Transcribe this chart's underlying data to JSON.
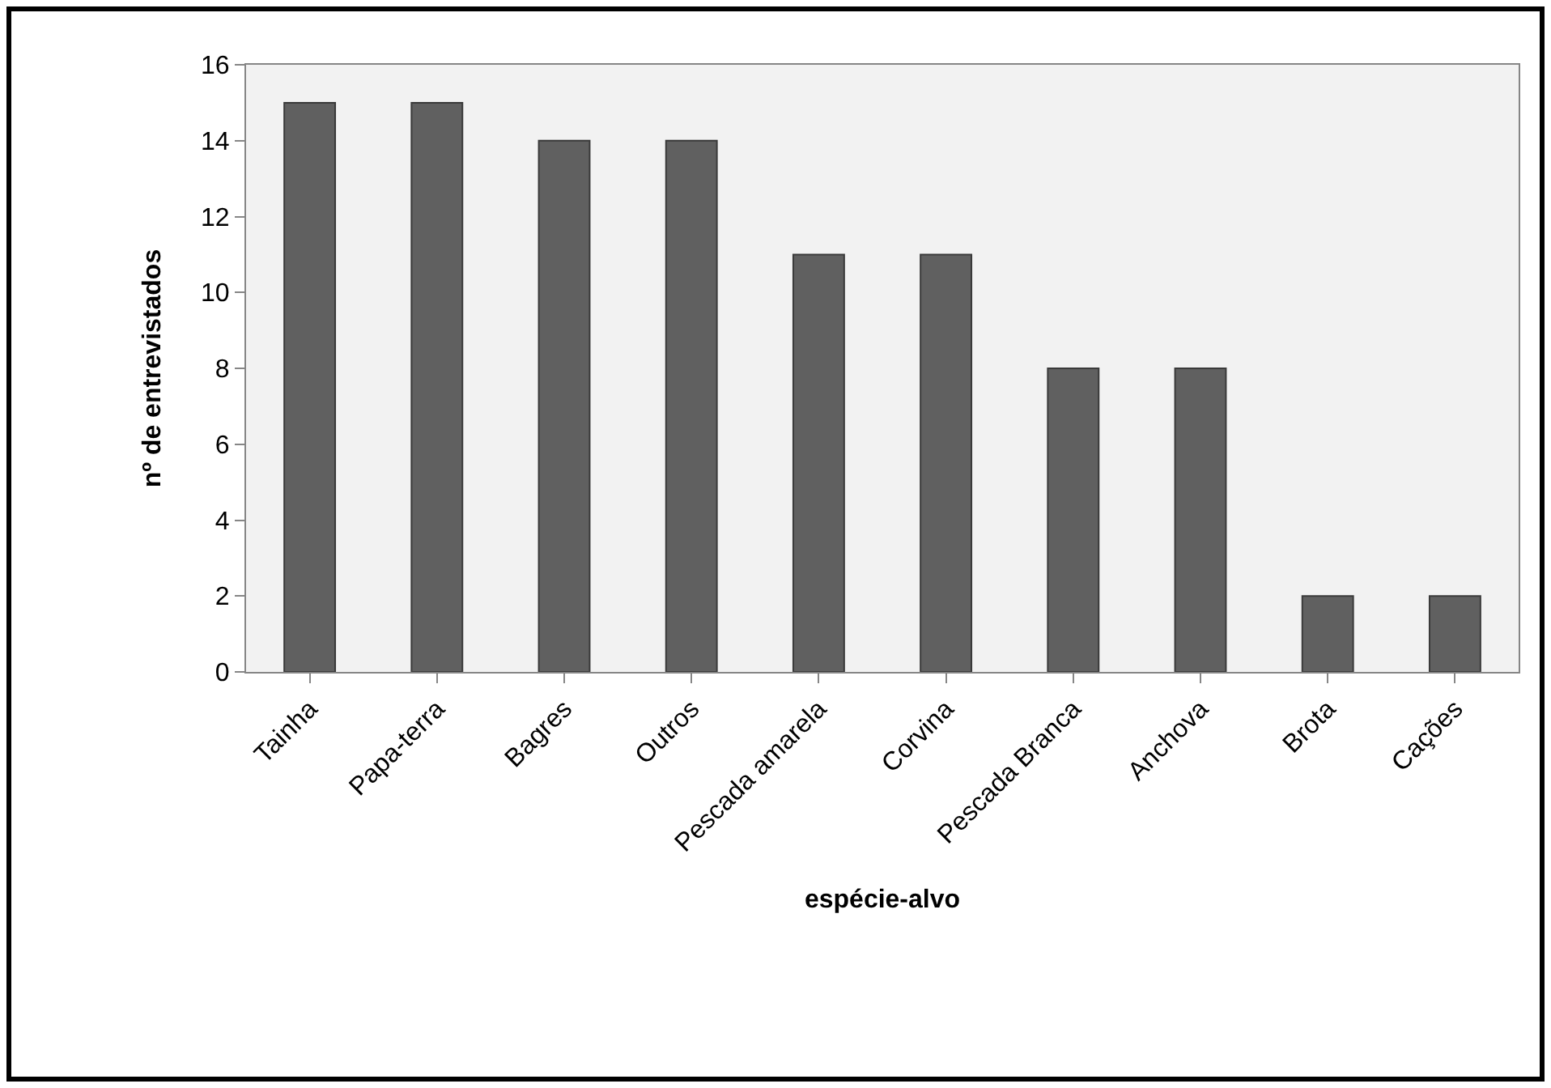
{
  "chart_data": {
    "type": "bar",
    "xlabel": "espécie-alvo",
    "ylabel": "nº de entrevistados",
    "categories": [
      "Tainha",
      "Papa-terra",
      "Bagres",
      "Outros",
      "Pescada amarela",
      "Corvina",
      "Pescada Branca",
      "Anchova",
      "Brota",
      "Cações"
    ],
    "values": [
      15,
      15,
      14,
      14,
      11,
      11,
      8,
      8,
      2,
      2
    ],
    "color": "#606060",
    "ylim": [
      0,
      16
    ],
    "yticks": [
      0,
      2,
      4,
      6,
      8,
      10,
      12,
      14,
      16
    ],
    "grid": false
  }
}
